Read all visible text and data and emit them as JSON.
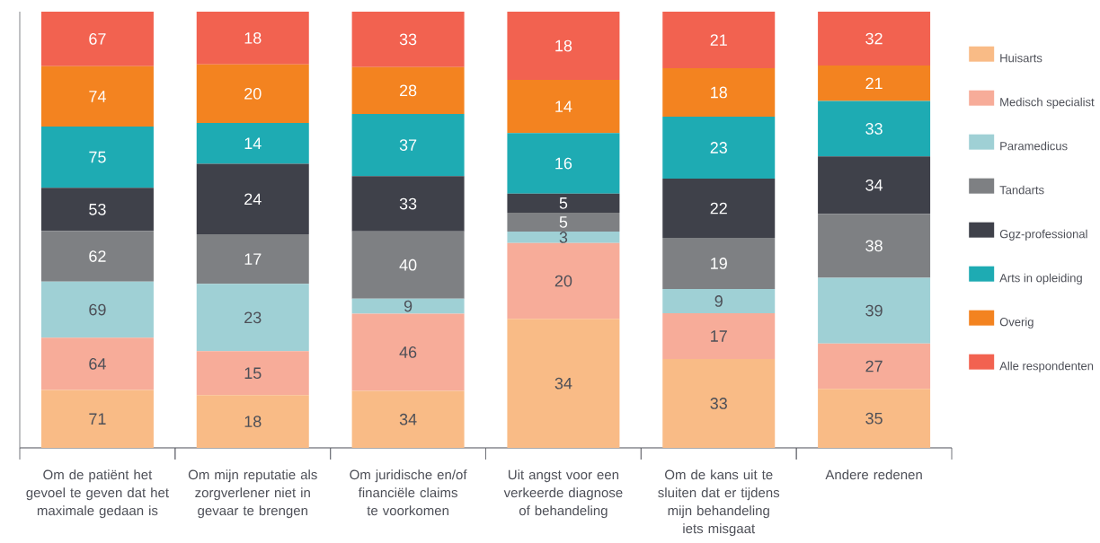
{
  "chart_data": [
    {
      "type": "bar",
      "stacked": true,
      "categories": [
        "Om de patiënt het gevoel te geven dat het maximale gedaan is"
      ],
      "series": [
        {
          "color": "#f9bb86",
          "values": [
            71
          ]
        },
        {
          "color": "#f7ac99",
          "values": [
            64
          ]
        },
        {
          "color": "#9fd0d5",
          "values": [
            69
          ]
        },
        {
          "color": "#7e8083",
          "values": [
            62
          ]
        },
        {
          "color": "#3f414a",
          "values": [
            53
          ]
        },
        {
          "color": "#1eabb3",
          "values": [
            75
          ]
        },
        {
          "color": "#f38320",
          "values": [
            74
          ]
        },
        {
          "color": "#f26250",
          "values": [
            67
          ]
        }
      ],
      "data_labels": true,
      "tick_labels": "x"
    },
    {
      "type": "bar",
      "stacked": true,
      "categories": [
        "Om mijn reputatie als zorgverlener niet in gevaar te brengen"
      ],
      "series": [
        {
          "color": "#f9bb86",
          "values": [
            18
          ]
        },
        {
          "color": "#f7ac99",
          "values": [
            15
          ]
        },
        {
          "color": "#9fd0d5",
          "values": [
            23
          ]
        },
        {
          "color": "#7e8083",
          "values": [
            17
          ]
        },
        {
          "color": "#3f414a",
          "values": [
            24
          ]
        },
        {
          "color": "#1eabb3",
          "values": [
            14
          ]
        },
        {
          "color": "#f38320",
          "values": [
            20
          ]
        },
        {
          "color": "#f26250",
          "values": [
            18
          ]
        }
      ],
      "data_labels": true,
      "tick_labels": "x"
    },
    {
      "type": "bar",
      "stacked": true,
      "categories": [
        "Om juridische en/of financiële claims te voorkomen"
      ],
      "series": [
        {
          "color": "#f9bb86",
          "values": [
            34
          ]
        },
        {
          "color": "#f7ac99",
          "values": [
            46
          ]
        },
        {
          "color": "#9fd0d5",
          "values": [
            9
          ]
        },
        {
          "color": "#7e8083",
          "values": [
            40
          ]
        },
        {
          "color": "#3f414a",
          "values": [
            33
          ]
        },
        {
          "color": "#1eabb3",
          "values": [
            37
          ]
        },
        {
          "color": "#f38320",
          "values": [
            28
          ]
        },
        {
          "color": "#f26250",
          "values": [
            33
          ]
        }
      ],
      "data_labels": true,
      "tick_labels": "x"
    },
    {
      "type": "bar",
      "stacked": true,
      "categories": [
        "Uit angst voor een verkeerde diagnose of behandeling"
      ],
      "series": [
        {
          "color": "#f9bb86",
          "values": [
            34
          ]
        },
        {
          "color": "#f7ac99",
          "values": [
            20
          ]
        },
        {
          "color": "#9fd0d5",
          "values": [
            3
          ]
        },
        {
          "color": "#7e8083",
          "values": [
            5
          ]
        },
        {
          "color": "#3f414a",
          "values": [
            5
          ]
        },
        {
          "color": "#1eabb3",
          "values": [
            16
          ]
        },
        {
          "color": "#f38320",
          "values": [
            14
          ]
        },
        {
          "color": "#f26250",
          "values": [
            18
          ]
        }
      ],
      "data_labels": true,
      "tick_labels": "x"
    },
    {
      "type": "bar",
      "stacked": true,
      "categories": [
        "Om de kans uit te sluiten dat er tijdens mijn behandeling iets misgaat"
      ],
      "series": [
        {
          "color": "#f9bb86",
          "values": [
            33
          ]
        },
        {
          "color": "#f7ac99",
          "values": [
            17
          ]
        },
        {
          "color": "#9fd0d5",
          "values": [
            9
          ]
        },
        {
          "color": "#7e8083",
          "values": [
            19
          ]
        },
        {
          "color": "#3f414a",
          "values": [
            22
          ]
        },
        {
          "color": "#1eabb3",
          "values": [
            23
          ]
        },
        {
          "color": "#f38320",
          "values": [
            18
          ]
        },
        {
          "color": "#f26250",
          "values": [
            21
          ]
        }
      ],
      "data_labels": true,
      "tick_labels": "x"
    },
    {
      "type": "bar",
      "stacked": true,
      "categories": [
        "Andere redenen"
      ],
      "series": [
        {
          "name": "Huisarts",
          "color": "#f9bb86",
          "values": [
            35
          ]
        },
        {
          "name": "Medisch specialist",
          "color": "#f7ac99",
          "values": [
            27
          ]
        },
        {
          "name": "Paramedicus",
          "color": "#9fd0d5",
          "values": [
            39
          ]
        },
        {
          "name": "Tandarts",
          "color": "#7e8083",
          "values": [
            38
          ]
        },
        {
          "name": "Ggz-professional",
          "color": "#3f414a",
          "values": [
            34
          ]
        },
        {
          "name": "Arts in opleiding",
          "color": "#1eabb3",
          "values": [
            33
          ]
        },
        {
          "name": "Overig",
          "color": "#f38320",
          "values": [
            21
          ]
        },
        {
          "name": "Alle respondenten",
          "color": "#f26250",
          "values": [
            32
          ]
        }
      ],
      "data_labels": true,
      "tick_labels": "x",
      "legend": "right"
    }
  ]
}
